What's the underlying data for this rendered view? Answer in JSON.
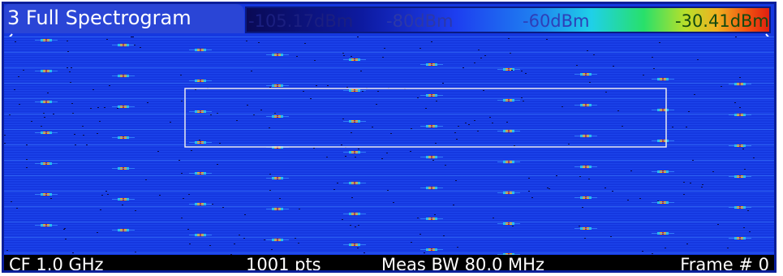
{
  "window": {
    "title": "3 Full Spectrogram"
  },
  "colorbar": {
    "labels": [
      "-105.17dBm",
      "-80dBm",
      "-60dBm",
      "-30.41dBm"
    ],
    "colors": [
      "#0a0a55",
      "#0d1aa0",
      "#1d3ef0",
      "#1fd0e8",
      "#28e06a",
      "#f0b020",
      "#e02010"
    ]
  },
  "status_bar": {
    "center_frequency": "CF 1.0 GHz",
    "points": "1001 pts",
    "meas_bandwidth": "Meas BW 80.0 MHz",
    "frame": "Frame # 0"
  },
  "spectrogram": {
    "background_color": "#1538e0",
    "selection_box": true
  }
}
